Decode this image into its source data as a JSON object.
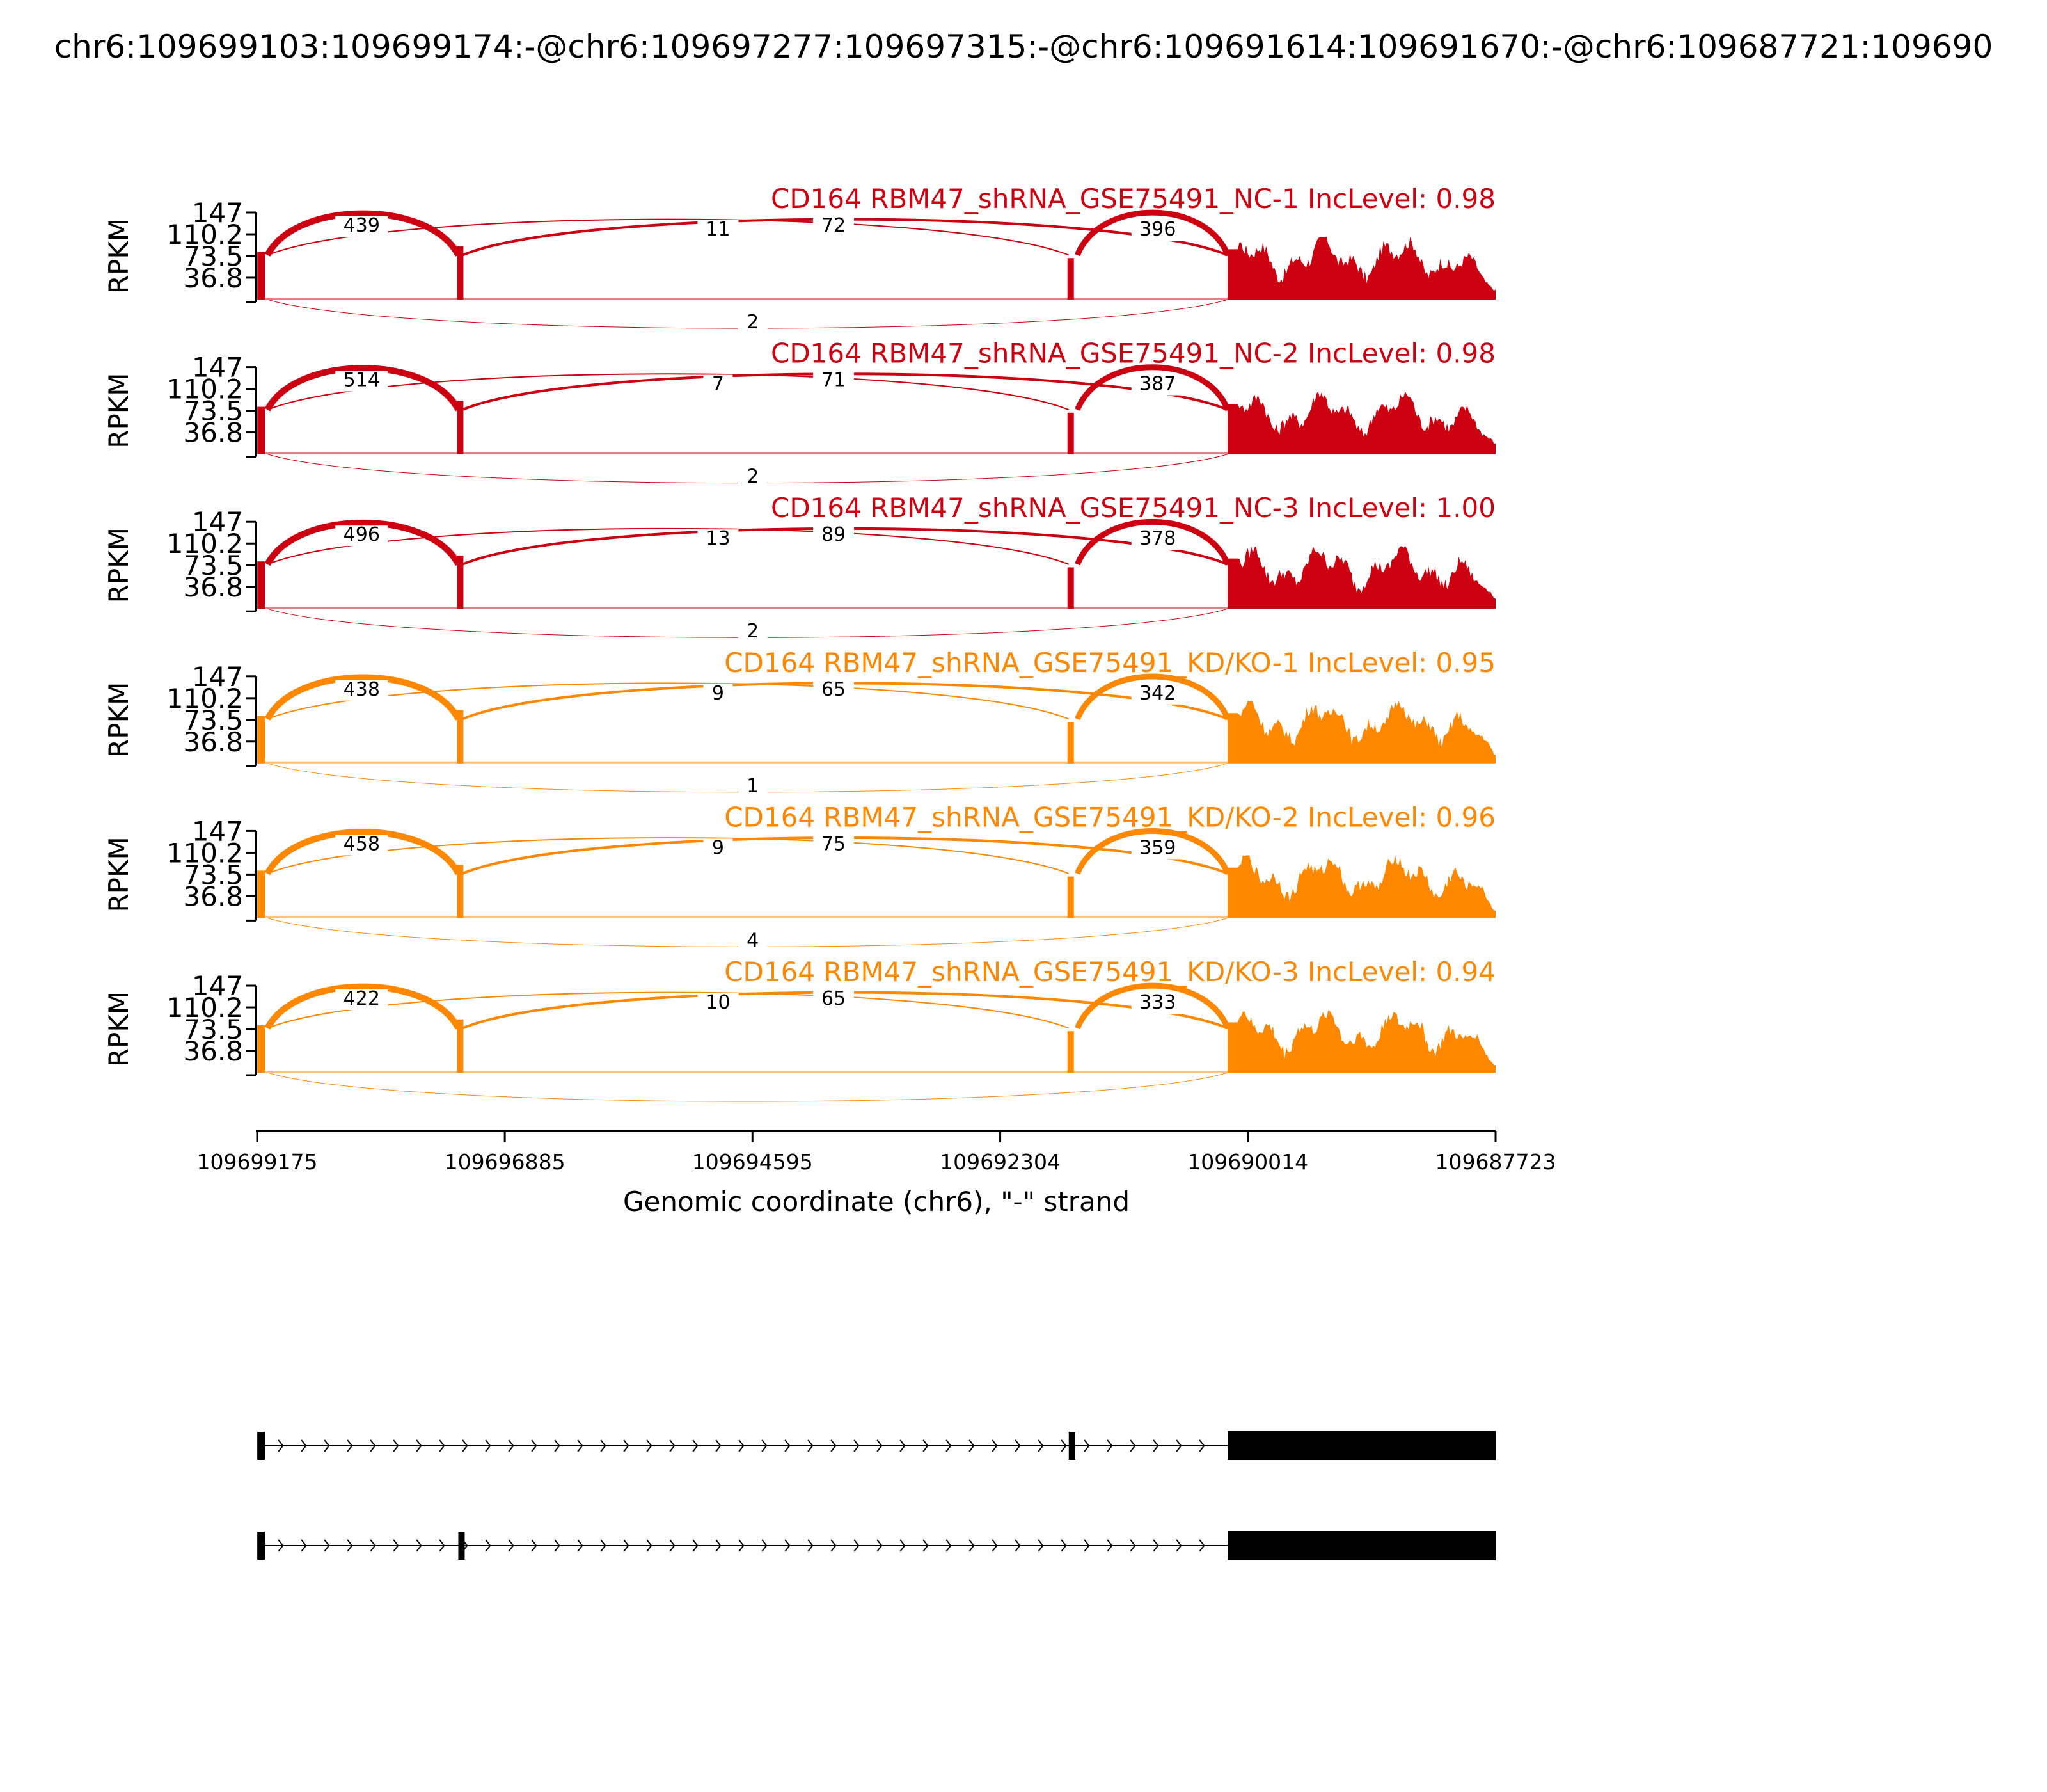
{
  "chart_data": {
    "type": "sashimi",
    "title": "chr6:109699103:109699174:-@chr6:109697277:109697315:-@chr6:109691614:109691670:-@chr6:109687721:109690",
    "xlabel": "Genomic coordinate (chr6), \"-\" strand",
    "ylabel": "RPKM",
    "ylim": [
      0,
      147
    ],
    "yticks": [
      "147",
      "110.2",
      "73.5",
      "36.8"
    ],
    "xlim": [
      109699175,
      109687723
    ],
    "xticks": [
      "109699175",
      "109696885",
      "109694595",
      "109692304",
      "109690014",
      "109687723"
    ],
    "exons": [
      {
        "start": 109699174,
        "end": 109699103
      },
      {
        "start": 109697315,
        "end": 109697277
      },
      {
        "start": 109691670,
        "end": 109691614
      },
      {
        "start": 109690200,
        "end": 109687723
      }
    ],
    "transcripts": [
      {
        "exons": [
          0,
          2,
          3
        ]
      },
      {
        "exons": [
          0,
          1,
          3
        ]
      }
    ],
    "colors": {
      "NC": "#cc0011",
      "KD": "#ff8800",
      "axis": "#000000",
      "gene": "#000000"
    },
    "samples": [
      {
        "label": "CD164 RBM47_shRNA_GSE75491_NC-1 IncLevel: 0.98",
        "group": "NC",
        "junctions": {
          "e1_e2": "439",
          "e1_e3": "11",
          "e2_e4": "72",
          "e3_e4": "396",
          "e1_e4": "2"
        }
      },
      {
        "label": "CD164 RBM47_shRNA_GSE75491_NC-2 IncLevel: 0.98",
        "group": "NC",
        "junctions": {
          "e1_e2": "514",
          "e1_e3": "7",
          "e2_e4": "71",
          "e3_e4": "387",
          "e1_e4": "2"
        }
      },
      {
        "label": "CD164 RBM47_shRNA_GSE75491_NC-3 IncLevel: 1.00",
        "group": "NC",
        "junctions": {
          "e1_e2": "496",
          "e1_e3": "13",
          "e2_e4": "89",
          "e3_e4": "378",
          "e1_e4": "2"
        }
      },
      {
        "label": "CD164 RBM47_shRNA_GSE75491_KD/KO-1 IncLevel: 0.95",
        "group": "KD",
        "junctions": {
          "e1_e2": "438",
          "e1_e3": "9",
          "e2_e4": "65",
          "e3_e4": "342",
          "e1_e4": "1"
        }
      },
      {
        "label": "CD164 RBM47_shRNA_GSE75491_KD/KO-2 IncLevel: 0.96",
        "group": "KD",
        "junctions": {
          "e1_e2": "458",
          "e1_e3": "9",
          "e2_e4": "75",
          "e3_e4": "359",
          "e1_e4": "4"
        }
      },
      {
        "label": "CD164 RBM47_shRNA_GSE75491_KD/KO-3 IncLevel: 0.94",
        "group": "KD",
        "junctions": {
          "e1_e2": "422",
          "e1_e3": "10",
          "e2_e4": "65",
          "e3_e4": "333",
          "e1_e4": ""
        }
      }
    ]
  }
}
